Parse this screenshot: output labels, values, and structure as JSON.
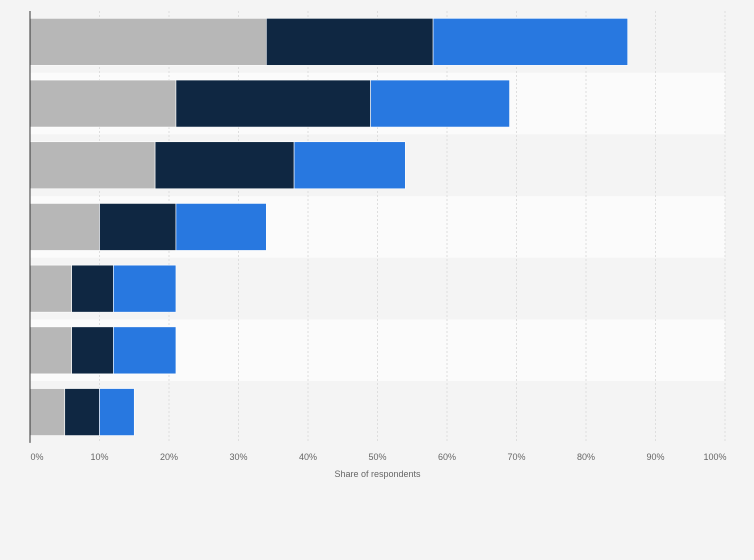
{
  "chart_data": {
    "type": "bar",
    "orientation": "horizontal",
    "stacked": true,
    "categories": [
      "",
      "",
      "",
      "",
      "",
      "",
      ""
    ],
    "series": [
      {
        "color": "#b7b7b7",
        "values": [
          34,
          21,
          18,
          10,
          6,
          6,
          5
        ]
      },
      {
        "color": "#0f2742",
        "values": [
          24,
          28,
          20,
          11,
          6,
          6,
          5
        ]
      },
      {
        "color": "#2878e0",
        "values": [
          28,
          20,
          16,
          13,
          9,
          9,
          5
        ]
      }
    ],
    "xlabel": "Share of respondents",
    "xlim": [
      0,
      100
    ],
    "xticks": [
      "0%",
      "10%",
      "20%",
      "30%",
      "40%",
      "50%",
      "60%",
      "70%",
      "80%",
      "90%",
      "100%"
    ],
    "grid": true,
    "legend": "none"
  }
}
